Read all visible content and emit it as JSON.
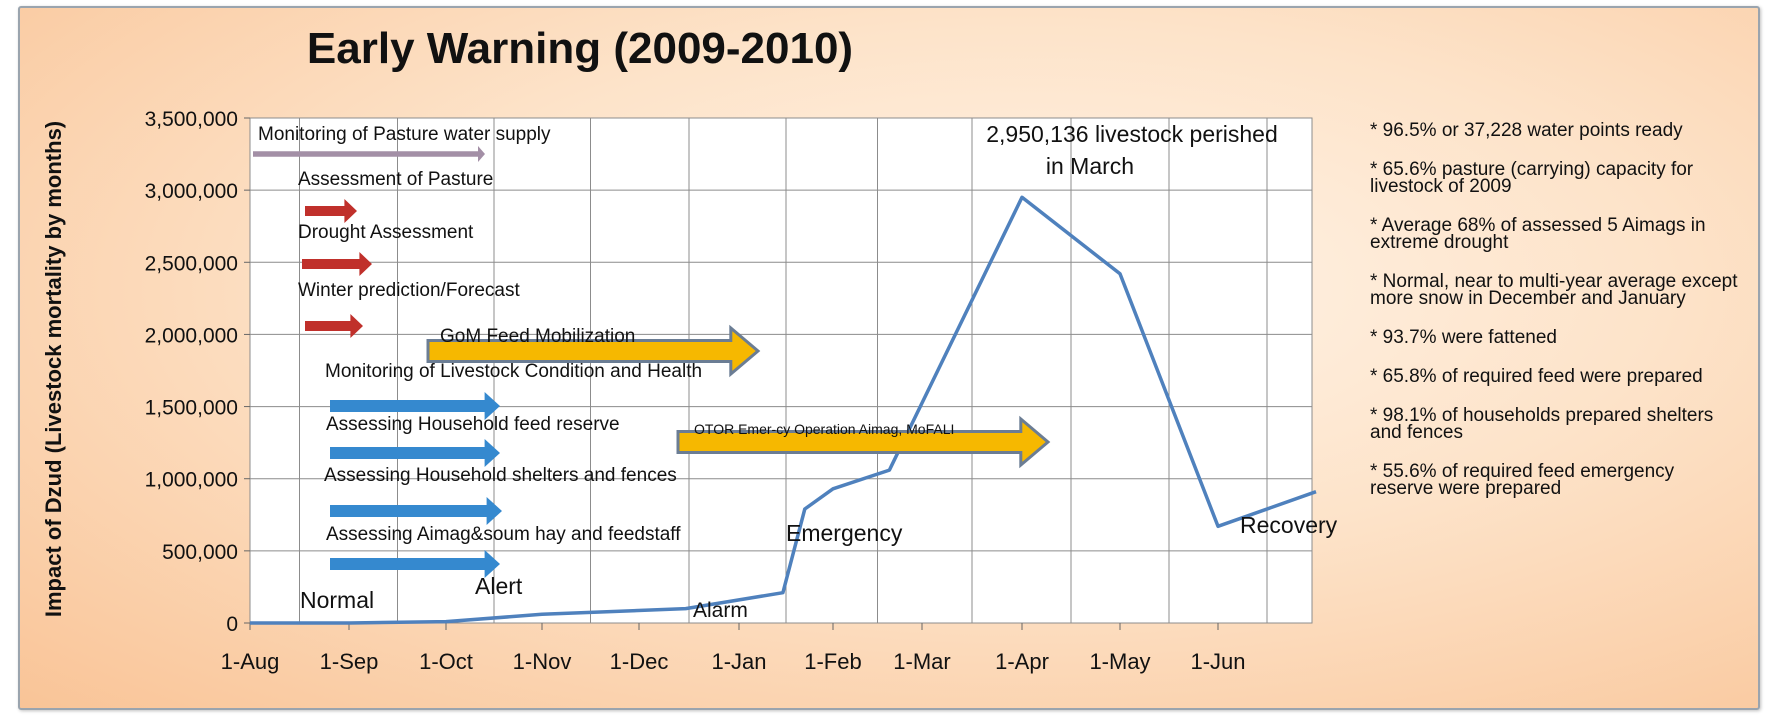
{
  "chart_data": {
    "type": "line",
    "title": "Early Warning (2009-2010)",
    "ylabel": "Impact of Dzud (Livestock mortality by months)",
    "xlabel": "",
    "x_ticks": [
      "1-Aug",
      "1-Sep",
      "1-Oct",
      "1-Nov",
      "1-Dec",
      "1-Jan",
      "1-Feb",
      "1-Mar",
      "1-Apr",
      "1-May",
      "1-Jun"
    ],
    "y_ticks": [
      "0",
      "500,000",
      "1,000,000",
      "1,500,000",
      "2,000,000",
      "2,500,000",
      "3,000,000",
      "3,500,000"
    ],
    "ylim": [
      0,
      3500000
    ],
    "grid": true,
    "series": [
      {
        "color": "#4f81bd",
        "points": [
          {
            "x": "1-Aug",
            "y": 0
          },
          {
            "x": "1-Sep",
            "y": 0
          },
          {
            "x": "1-Oct",
            "y": 10000
          },
          {
            "x": "1-Nov",
            "y": 60000
          },
          {
            "x": "15-Dec",
            "y": 100000
          },
          {
            "x": "15-Jan",
            "y": 210000
          },
          {
            "x": "22-Jan",
            "y": 790000
          },
          {
            "x": "1-Feb",
            "y": 930000
          },
          {
            "x": "20-Feb",
            "y": 1060000
          },
          {
            "x": "1-Apr",
            "y": 2950136
          },
          {
            "x": "1-May",
            "y": 2420000
          },
          {
            "x": "1-Jun",
            "y": 670000
          },
          {
            "x": "1-Jul",
            "y": 910000
          }
        ]
      }
    ],
    "annotations": [
      {
        "text": "2,950,136 livestock perished",
        "x": "1-Apr",
        "y": 3400000
      },
      {
        "text": "in March",
        "x": "1-Apr",
        "y": 3210000
      },
      {
        "text": "Normal",
        "x": "1-Sep",
        "y": 130000
      },
      {
        "text": "Alert",
        "x": "15-Oct",
        "y": 230000
      },
      {
        "text": "Alarm",
        "x": "1-Jan",
        "y": 30000
      },
      {
        "text": "Emergency",
        "x": "15-Feb",
        "y": 570000
      },
      {
        "text": "Recovery",
        "x": "1-Jul",
        "y": 620000
      }
    ],
    "activities": [
      {
        "label": "Monitoring of Pasture water supply",
        "arrow_color": "#a38fa6",
        "style": "thin"
      },
      {
        "label": "Assessment of Pasture",
        "arrow_color": "#c0302b",
        "style": "small"
      },
      {
        "label": "Drought Assessment",
        "arrow_color": "#c0302b",
        "style": "small"
      },
      {
        "label": "Winter prediction/Forecast",
        "arrow_color": "#c0302b",
        "style": "small"
      },
      {
        "label": "GoM Feed Mobilization",
        "arrow_color": "#f6b800",
        "style": "big"
      },
      {
        "label": "Monitoring of Livestock Condition and Health",
        "arrow_color": "#3589cf",
        "style": "blue"
      },
      {
        "label": "Assessing Household  feed reserve",
        "arrow_color": "#3589cf",
        "style": "blue"
      },
      {
        "label": "OTOR Emer-cy Operation Aimag, MoFALI",
        "arrow_color": "#f6b800",
        "style": "big"
      },
      {
        "label": "Assessing Household shelters and fences",
        "arrow_color": "#3589cf",
        "style": "blue"
      },
      {
        "label": "Assessing Aimag&soum hay and feedstaff",
        "arrow_color": "#3589cf",
        "style": "blue"
      }
    ]
  },
  "notes": [
    "* 96.5%  or 37,228  water points ready",
    "* 65.6%  pasture (carrying) capacity for livestock of 2009",
    "* Average 68% of assessed 5 Aimags in extreme drought",
    "* Normal, near to multi-year average except more snow in December and January",
    "* 93.7%   were fattened",
    "* 65.8%  of required feed were prepared",
    "* 98.1%  of households prepared shelters and fences",
    "* 55.6%  of required feed emergency reserve were prepared"
  ],
  "colors": {
    "line": "#4f81bd",
    "grid": "#8c8c8c",
    "background": "#fbd4ae"
  }
}
